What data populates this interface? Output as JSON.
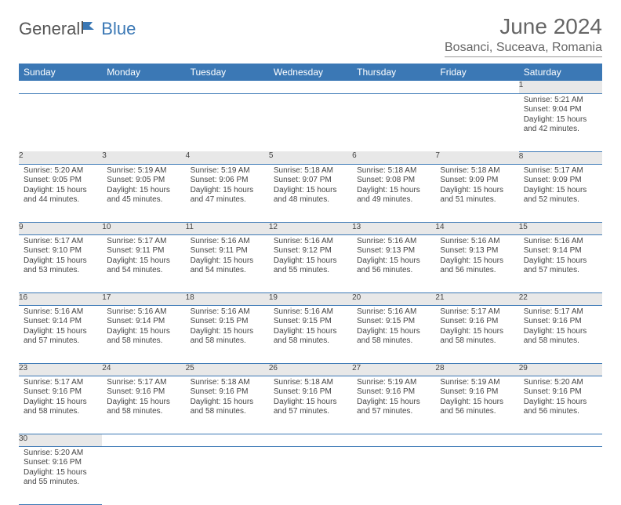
{
  "brand": {
    "part1": "General",
    "part2": "Blue"
  },
  "title": "June 2024",
  "location": "Bosanci, Suceava, Romania",
  "colors": {
    "header_bg": "#3b78b5",
    "header_text": "#ffffff",
    "daynum_bg": "#e8e8e8",
    "border": "#3b78b5",
    "background": "#ffffff",
    "logo_accent": "#3b78b5",
    "logo_gray": "#555555"
  },
  "weekdays": [
    "Sunday",
    "Monday",
    "Tuesday",
    "Wednesday",
    "Thursday",
    "Friday",
    "Saturday"
  ],
  "weeks": [
    [
      null,
      null,
      null,
      null,
      null,
      null,
      {
        "n": "1",
        "sr": "Sunrise: 5:21 AM",
        "ss": "Sunset: 9:04 PM",
        "d1": "Daylight: 15 hours",
        "d2": "and 42 minutes."
      }
    ],
    [
      {
        "n": "2",
        "sr": "Sunrise: 5:20 AM",
        "ss": "Sunset: 9:05 PM",
        "d1": "Daylight: 15 hours",
        "d2": "and 44 minutes."
      },
      {
        "n": "3",
        "sr": "Sunrise: 5:19 AM",
        "ss": "Sunset: 9:05 PM",
        "d1": "Daylight: 15 hours",
        "d2": "and 45 minutes."
      },
      {
        "n": "4",
        "sr": "Sunrise: 5:19 AM",
        "ss": "Sunset: 9:06 PM",
        "d1": "Daylight: 15 hours",
        "d2": "and 47 minutes."
      },
      {
        "n": "5",
        "sr": "Sunrise: 5:18 AM",
        "ss": "Sunset: 9:07 PM",
        "d1": "Daylight: 15 hours",
        "d2": "and 48 minutes."
      },
      {
        "n": "6",
        "sr": "Sunrise: 5:18 AM",
        "ss": "Sunset: 9:08 PM",
        "d1": "Daylight: 15 hours",
        "d2": "and 49 minutes."
      },
      {
        "n": "7",
        "sr": "Sunrise: 5:18 AM",
        "ss": "Sunset: 9:09 PM",
        "d1": "Daylight: 15 hours",
        "d2": "and 51 minutes."
      },
      {
        "n": "8",
        "sr": "Sunrise: 5:17 AM",
        "ss": "Sunset: 9:09 PM",
        "d1": "Daylight: 15 hours",
        "d2": "and 52 minutes."
      }
    ],
    [
      {
        "n": "9",
        "sr": "Sunrise: 5:17 AM",
        "ss": "Sunset: 9:10 PM",
        "d1": "Daylight: 15 hours",
        "d2": "and 53 minutes."
      },
      {
        "n": "10",
        "sr": "Sunrise: 5:17 AM",
        "ss": "Sunset: 9:11 PM",
        "d1": "Daylight: 15 hours",
        "d2": "and 54 minutes."
      },
      {
        "n": "11",
        "sr": "Sunrise: 5:16 AM",
        "ss": "Sunset: 9:11 PM",
        "d1": "Daylight: 15 hours",
        "d2": "and 54 minutes."
      },
      {
        "n": "12",
        "sr": "Sunrise: 5:16 AM",
        "ss": "Sunset: 9:12 PM",
        "d1": "Daylight: 15 hours",
        "d2": "and 55 minutes."
      },
      {
        "n": "13",
        "sr": "Sunrise: 5:16 AM",
        "ss": "Sunset: 9:13 PM",
        "d1": "Daylight: 15 hours",
        "d2": "and 56 minutes."
      },
      {
        "n": "14",
        "sr": "Sunrise: 5:16 AM",
        "ss": "Sunset: 9:13 PM",
        "d1": "Daylight: 15 hours",
        "d2": "and 56 minutes."
      },
      {
        "n": "15",
        "sr": "Sunrise: 5:16 AM",
        "ss": "Sunset: 9:14 PM",
        "d1": "Daylight: 15 hours",
        "d2": "and 57 minutes."
      }
    ],
    [
      {
        "n": "16",
        "sr": "Sunrise: 5:16 AM",
        "ss": "Sunset: 9:14 PM",
        "d1": "Daylight: 15 hours",
        "d2": "and 57 minutes."
      },
      {
        "n": "17",
        "sr": "Sunrise: 5:16 AM",
        "ss": "Sunset: 9:14 PM",
        "d1": "Daylight: 15 hours",
        "d2": "and 58 minutes."
      },
      {
        "n": "18",
        "sr": "Sunrise: 5:16 AM",
        "ss": "Sunset: 9:15 PM",
        "d1": "Daylight: 15 hours",
        "d2": "and 58 minutes."
      },
      {
        "n": "19",
        "sr": "Sunrise: 5:16 AM",
        "ss": "Sunset: 9:15 PM",
        "d1": "Daylight: 15 hours",
        "d2": "and 58 minutes."
      },
      {
        "n": "20",
        "sr": "Sunrise: 5:16 AM",
        "ss": "Sunset: 9:15 PM",
        "d1": "Daylight: 15 hours",
        "d2": "and 58 minutes."
      },
      {
        "n": "21",
        "sr": "Sunrise: 5:17 AM",
        "ss": "Sunset: 9:16 PM",
        "d1": "Daylight: 15 hours",
        "d2": "and 58 minutes."
      },
      {
        "n": "22",
        "sr": "Sunrise: 5:17 AM",
        "ss": "Sunset: 9:16 PM",
        "d1": "Daylight: 15 hours",
        "d2": "and 58 minutes."
      }
    ],
    [
      {
        "n": "23",
        "sr": "Sunrise: 5:17 AM",
        "ss": "Sunset: 9:16 PM",
        "d1": "Daylight: 15 hours",
        "d2": "and 58 minutes."
      },
      {
        "n": "24",
        "sr": "Sunrise: 5:17 AM",
        "ss": "Sunset: 9:16 PM",
        "d1": "Daylight: 15 hours",
        "d2": "and 58 minutes."
      },
      {
        "n": "25",
        "sr": "Sunrise: 5:18 AM",
        "ss": "Sunset: 9:16 PM",
        "d1": "Daylight: 15 hours",
        "d2": "and 58 minutes."
      },
      {
        "n": "26",
        "sr": "Sunrise: 5:18 AM",
        "ss": "Sunset: 9:16 PM",
        "d1": "Daylight: 15 hours",
        "d2": "and 57 minutes."
      },
      {
        "n": "27",
        "sr": "Sunrise: 5:19 AM",
        "ss": "Sunset: 9:16 PM",
        "d1": "Daylight: 15 hours",
        "d2": "and 57 minutes."
      },
      {
        "n": "28",
        "sr": "Sunrise: 5:19 AM",
        "ss": "Sunset: 9:16 PM",
        "d1": "Daylight: 15 hours",
        "d2": "and 56 minutes."
      },
      {
        "n": "29",
        "sr": "Sunrise: 5:20 AM",
        "ss": "Sunset: 9:16 PM",
        "d1": "Daylight: 15 hours",
        "d2": "and 56 minutes."
      }
    ],
    [
      {
        "n": "30",
        "sr": "Sunrise: 5:20 AM",
        "ss": "Sunset: 9:16 PM",
        "d1": "Daylight: 15 hours",
        "d2": "and 55 minutes."
      },
      null,
      null,
      null,
      null,
      null,
      null
    ]
  ]
}
